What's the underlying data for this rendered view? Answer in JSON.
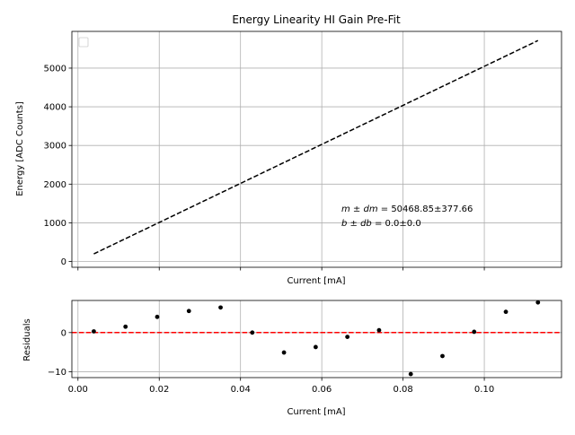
{
  "chart_data": [
    {
      "type": "line",
      "title": "Energy Linearity HI Gain Pre-Fit",
      "xlabel": "Current [mA]",
      "ylabel": "Energy [ADC Counts]",
      "xlim": [
        -0.0015,
        0.119
      ],
      "ylim": [
        -150,
        5950
      ],
      "xticks": [
        0.0,
        0.02,
        0.04,
        0.06,
        0.08,
        0.1
      ],
      "xtick_labels_shown": false,
      "yticks": [
        0,
        1000,
        2000,
        3000,
        4000,
        5000
      ],
      "ytick_labels": [
        "0",
        "1000",
        "2000",
        "3000",
        "4000",
        "5000"
      ],
      "grid": true,
      "legend": "top-left (empty)",
      "series": [
        {
          "style": "dashed",
          "color": "#000000",
          "x": [
            0.0039,
            0.1132
          ],
          "y": [
            197,
            5713
          ]
        }
      ],
      "annotations": [
        {
          "math": "m ± dm",
          "text": " = 50468.85±377.66"
        },
        {
          "math": "b ± db",
          "text": " = 0.0±0.0"
        }
      ]
    },
    {
      "type": "scatter",
      "title": "",
      "xlabel": "Current [mA]",
      "ylabel": "Residuals",
      "xlim": [
        -0.0015,
        0.119
      ],
      "ylim": [
        -11.5,
        8.2
      ],
      "xticks": [
        0.0,
        0.02,
        0.04,
        0.06,
        0.08,
        0.1
      ],
      "xtick_labels": [
        "0.00",
        "0.02",
        "0.04",
        "0.06",
        "0.08",
        "0.10"
      ],
      "yticks": [
        -10,
        0
      ],
      "ytick_labels": [
        "−10",
        "0"
      ],
      "grid": true,
      "reference_line": {
        "y": 0,
        "style": "dashed",
        "color": "#ff0000"
      },
      "series": [
        {
          "color": "#000000",
          "x": [
            0.0039,
            0.0117,
            0.0195,
            0.0273,
            0.0351,
            0.0429,
            0.0507,
            0.0585,
            0.0663,
            0.0741,
            0.0819,
            0.0897,
            0.0975,
            0.1053,
            0.1132
          ],
          "y": [
            0.3,
            1.5,
            4.0,
            5.5,
            6.4,
            0.0,
            -5.1,
            -3.7,
            -1.1,
            0.6,
            -10.6,
            -6.0,
            0.2,
            5.3,
            7.7
          ]
        }
      ]
    }
  ]
}
